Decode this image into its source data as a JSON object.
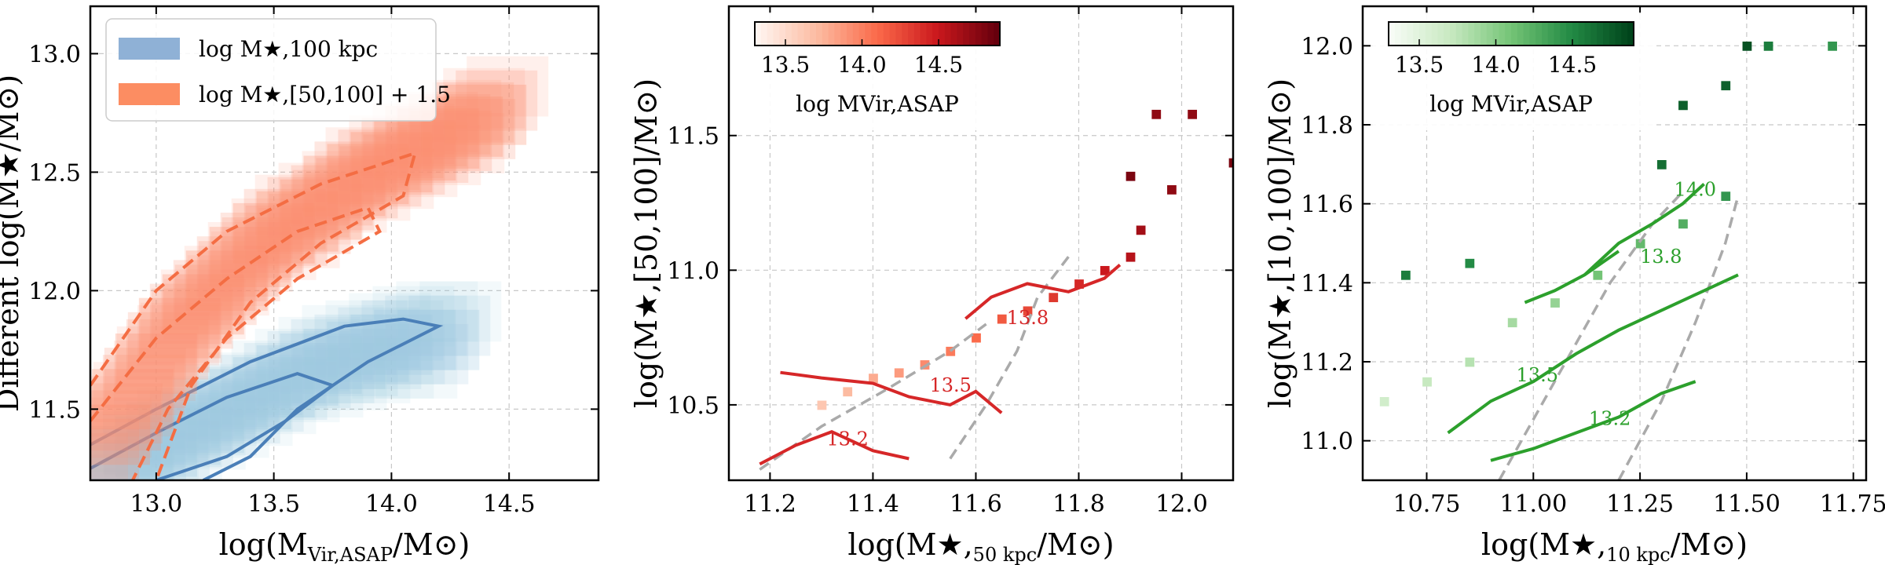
{
  "figure": {
    "panels": 3
  },
  "chart_data": [
    {
      "type": "heatmap",
      "panel": "left",
      "ylabel": "Different  log(M★/M⊙)",
      "xlabel": "log(MVir,ASAP/M⊙)",
      "xlabel_main": "log(M",
      "xlabel_sub": "Vir,ASAP",
      "xlabel_tail": "/M⊙)",
      "xlim": [
        12.72,
        14.88
      ],
      "ylim": [
        11.2,
        13.2
      ],
      "xticks": [
        "13.0",
        "13.5",
        "14.0",
        "14.5"
      ],
      "yticks": [
        "11.5",
        "12.0",
        "12.5",
        "13.0"
      ],
      "grid": true,
      "legend_position": "top-left",
      "legend": [
        {
          "name": "log M★,100 kpc",
          "color": "#8fb1d6"
        },
        {
          "name": "log M★,[50,100] + 1.5",
          "color": "#fc8d62"
        }
      ],
      "series": [
        {
          "name": "log M★,100 kpc",
          "color": "#4a7fb8",
          "density_cells": [
            [
              12.8,
              11.25
            ],
            [
              12.9,
              11.3
            ],
            [
              13.0,
              11.35
            ],
            [
              13.1,
              11.4
            ],
            [
              13.2,
              11.45
            ],
            [
              13.3,
              11.5
            ],
            [
              13.4,
              11.55
            ],
            [
              13.5,
              11.6
            ],
            [
              13.6,
              11.65
            ],
            [
              13.7,
              11.7
            ],
            [
              13.8,
              11.72
            ],
            [
              13.9,
              11.75
            ],
            [
              14.0,
              11.78
            ],
            [
              14.1,
              11.8
            ],
            [
              14.2,
              11.8
            ]
          ],
          "contours": [
            [
              [
                12.72,
                11.25
              ],
              [
                13.0,
                11.4
              ],
              [
                13.3,
                11.55
              ],
              [
                13.6,
                11.65
              ],
              [
                13.75,
                11.6
              ],
              [
                13.55,
                11.45
              ],
              [
                13.3,
                11.3
              ],
              [
                13.0,
                11.2
              ]
            ],
            [
              [
                12.72,
                11.35
              ],
              [
                13.0,
                11.5
              ],
              [
                13.4,
                11.7
              ],
              [
                13.8,
                11.85
              ],
              [
                14.05,
                11.88
              ],
              [
                14.2,
                11.85
              ],
              [
                13.9,
                11.7
              ],
              [
                13.6,
                11.5
              ],
              [
                13.4,
                11.3
              ],
              [
                13.2,
                11.2
              ]
            ]
          ]
        },
        {
          "name": "log M★,[50,100] + 1.5",
          "color": "#f46d43",
          "density_cells": [
            [
              12.8,
              11.4
            ],
            [
              12.9,
              11.55
            ],
            [
              13.0,
              11.7
            ],
            [
              13.1,
              11.85
            ],
            [
              13.2,
              11.95
            ],
            [
              13.3,
              12.05
            ],
            [
              13.4,
              12.15
            ],
            [
              13.5,
              12.25
            ],
            [
              13.6,
              12.3
            ],
            [
              13.7,
              12.35
            ],
            [
              13.8,
              12.45
            ],
            [
              13.9,
              12.5
            ],
            [
              14.0,
              12.55
            ],
            [
              14.1,
              12.6
            ],
            [
              14.2,
              12.65
            ],
            [
              14.3,
              12.7
            ],
            [
              14.4,
              12.75
            ]
          ],
          "contours": [
            [
              [
                12.72,
                11.45
              ],
              [
                13.0,
                11.8
              ],
              [
                13.3,
                12.05
              ],
              [
                13.6,
                12.25
              ],
              [
                13.9,
                12.35
              ],
              [
                13.95,
                12.25
              ],
              [
                13.6,
                12.05
              ],
              [
                13.3,
                11.8
              ],
              [
                13.05,
                11.5
              ],
              [
                12.9,
                11.2
              ]
            ],
            [
              [
                12.72,
                11.6
              ],
              [
                13.0,
                12.0
              ],
              [
                13.3,
                12.25
              ],
              [
                13.7,
                12.45
              ],
              [
                14.1,
                12.58
              ],
              [
                14.05,
                12.4
              ],
              [
                13.7,
                12.2
              ],
              [
                13.4,
                11.95
              ],
              [
                13.15,
                11.6
              ],
              [
                13.0,
                11.2
              ]
            ]
          ]
        }
      ]
    },
    {
      "type": "heatmap",
      "panel": "middle",
      "ylabel": "log(M★,[50,100]/M⊙)",
      "xlabel": "log(M★,50 kpc/M⊙)",
      "xlabel_main": "log(M★,",
      "xlabel_sub": "50 kpc",
      "xlabel_tail": "/M⊙)",
      "xlim": [
        11.12,
        12.1
      ],
      "ylim": [
        10.22,
        11.98
      ],
      "xticks": [
        "11.2",
        "11.4",
        "11.6",
        "11.8",
        "12.0"
      ],
      "yticks": [
        "10.5",
        "11.0",
        "11.5"
      ],
      "grid": true,
      "colorbar": {
        "label": "log MVir,ASAP",
        "ticks": [
          "13.5",
          "14.0",
          "14.5"
        ],
        "range": [
          13.3,
          14.9
        ],
        "cmap": "Reds"
      },
      "contour_labels": [
        "13.8",
        "13.5",
        "13.2"
      ],
      "contour_label_positions": [
        [
          11.66,
          10.8
        ],
        [
          11.51,
          10.55
        ],
        [
          11.31,
          10.35
        ]
      ],
      "contours_data": [
        {
          "level": "13.8",
          "points": [
            [
              11.58,
              10.82
            ],
            [
              11.63,
              10.9
            ],
            [
              11.7,
              10.95
            ],
            [
              11.78,
              10.92
            ],
            [
              11.85,
              10.97
            ],
            [
              11.88,
              11.02
            ]
          ]
        },
        {
          "level": "13.5",
          "points": [
            [
              11.22,
              10.62
            ],
            [
              11.3,
              10.6
            ],
            [
              11.4,
              10.58
            ],
            [
              11.47,
              10.53
            ],
            [
              11.55,
              10.5
            ],
            [
              11.6,
              10.55
            ],
            [
              11.65,
              10.47
            ]
          ]
        },
        {
          "level": "13.2",
          "points": [
            [
              11.18,
              10.28
            ],
            [
              11.25,
              10.35
            ],
            [
              11.32,
              10.4
            ],
            [
              11.4,
              10.33
            ],
            [
              11.47,
              10.3
            ]
          ]
        }
      ],
      "dashed_contours": [
        [
          [
            11.18,
            10.26
          ],
          [
            11.3,
            10.42
          ],
          [
            11.42,
            10.55
          ],
          [
            11.55,
            10.7
          ],
          [
            11.62,
            10.8
          ]
        ],
        [
          [
            11.55,
            10.3
          ],
          [
            11.62,
            10.5
          ],
          [
            11.68,
            10.7
          ],
          [
            11.72,
            10.9
          ],
          [
            11.78,
            11.05
          ]
        ]
      ],
      "cells": [
        [
          11.3,
          10.5,
          0.2
        ],
        [
          11.35,
          10.55,
          0.25
        ],
        [
          11.4,
          10.6,
          0.3
        ],
        [
          11.45,
          10.62,
          0.35
        ],
        [
          11.5,
          10.65,
          0.4
        ],
        [
          11.55,
          10.7,
          0.45
        ],
        [
          11.6,
          10.75,
          0.5
        ],
        [
          11.65,
          10.82,
          0.55
        ],
        [
          11.7,
          10.85,
          0.6
        ],
        [
          11.75,
          10.9,
          0.65
        ],
        [
          11.8,
          10.95,
          0.7
        ],
        [
          11.85,
          11.0,
          0.75
        ],
        [
          11.9,
          11.05,
          0.8
        ],
        [
          11.92,
          11.15,
          0.85
        ],
        [
          11.98,
          11.3,
          0.9
        ],
        [
          11.9,
          11.35,
          0.95
        ],
        [
          11.95,
          11.58,
          0.9
        ],
        [
          12.02,
          11.58,
          0.9
        ],
        [
          12.1,
          11.4,
          0.95
        ]
      ]
    },
    {
      "type": "heatmap",
      "panel": "right",
      "ylabel": "log(M★,[10,100]/M⊙)",
      "xlabel": "log(M★,10 kpc/M⊙)",
      "xlabel_main": "log(M★,",
      "xlabel_sub": "10 kpc",
      "xlabel_tail": "/M⊙)",
      "xlim": [
        10.6,
        11.78
      ],
      "ylim": [
        10.9,
        12.1
      ],
      "xticks": [
        "10.75",
        "11.00",
        "11.25",
        "11.50",
        "11.75"
      ],
      "yticks": [
        "11.0",
        "11.2",
        "11.4",
        "11.6",
        "11.8",
        "12.0"
      ],
      "grid": true,
      "colorbar": {
        "label": "log MVir,ASAP",
        "ticks": [
          "13.5",
          "14.0",
          "14.5"
        ],
        "range": [
          13.3,
          14.9
        ],
        "cmap": "Greens"
      },
      "contour_labels": [
        "14.0",
        "13.8",
        "13.5",
        "13.2"
      ],
      "contour_label_positions": [
        [
          11.33,
          11.62
        ],
        [
          11.25,
          11.45
        ],
        [
          10.96,
          11.15
        ],
        [
          11.13,
          11.04
        ]
      ],
      "contours_data": [
        {
          "level": "14.0",
          "points": [
            [
              11.12,
              11.42
            ],
            [
              11.2,
              11.5
            ],
            [
              11.28,
              11.55
            ],
            [
              11.35,
              11.6
            ],
            [
              11.4,
              11.65
            ]
          ]
        },
        {
          "level": "13.8",
          "points": [
            [
              10.98,
              11.35
            ],
            [
              11.05,
              11.38
            ],
            [
              11.12,
              11.42
            ],
            [
              11.2,
              11.48
            ]
          ]
        },
        {
          "level": "13.5",
          "points": [
            [
              10.8,
              11.02
            ],
            [
              10.9,
              11.1
            ],
            [
              11.0,
              11.15
            ],
            [
              11.1,
              11.22
            ],
            [
              11.2,
              11.28
            ],
            [
              11.3,
              11.33
            ],
            [
              11.4,
              11.38
            ],
            [
              11.48,
              11.42
            ]
          ]
        },
        {
          "level": "13.2",
          "points": [
            [
              10.9,
              10.95
            ],
            [
              11.0,
              10.98
            ],
            [
              11.1,
              11.02
            ],
            [
              11.2,
              11.06
            ],
            [
              11.3,
              11.12
            ],
            [
              11.38,
              11.15
            ]
          ]
        }
      ],
      "dashed_contours": [
        [
          [
            10.92,
            10.9
          ],
          [
            11.05,
            11.15
          ],
          [
            11.18,
            11.4
          ],
          [
            11.28,
            11.55
          ],
          [
            11.35,
            11.63
          ]
        ],
        [
          [
            11.2,
            10.9
          ],
          [
            11.3,
            11.1
          ],
          [
            11.38,
            11.3
          ],
          [
            11.45,
            11.5
          ],
          [
            11.48,
            11.62
          ]
        ]
      ],
      "cells": [
        [
          10.65,
          11.1,
          0.2
        ],
        [
          10.75,
          11.15,
          0.25
        ],
        [
          10.85,
          11.2,
          0.3
        ],
        [
          10.95,
          11.3,
          0.35
        ],
        [
          11.05,
          11.35,
          0.4
        ],
        [
          11.15,
          11.42,
          0.5
        ],
        [
          11.25,
          11.5,
          0.55
        ],
        [
          11.35,
          11.55,
          0.6
        ],
        [
          11.45,
          11.62,
          0.7
        ],
        [
          10.7,
          11.42,
          0.8
        ],
        [
          10.85,
          11.45,
          0.75
        ],
        [
          11.35,
          11.85,
          0.9
        ],
        [
          11.45,
          11.9,
          0.9
        ],
        [
          11.55,
          12.0,
          0.8
        ],
        [
          11.7,
          12.0,
          0.7
        ],
        [
          11.5,
          12.0,
          0.95
        ],
        [
          11.3,
          11.7,
          0.85
        ]
      ]
    }
  ]
}
